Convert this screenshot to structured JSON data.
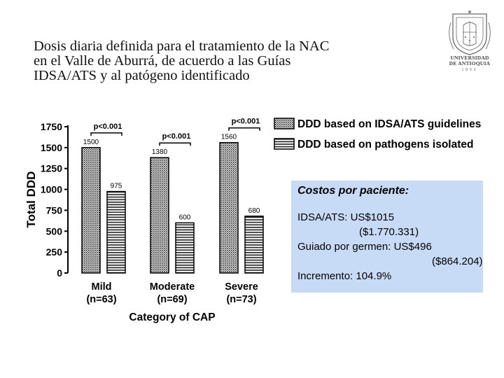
{
  "slide": {
    "title_lines": [
      "Dosis diaria definida para el tratamiento de la NAC",
      "en el Valle de Aburrá, de acuerdo a las Guías",
      "IDSA/ATS y al patógeno identificado"
    ]
  },
  "logo": {
    "name_line1": "UNIVERSIDAD",
    "name_line2": "DE ANTIOQUIA",
    "year": "1803",
    "seal_icon": "university-seal-icon"
  },
  "cost_box": {
    "title": "Costos por paciente:",
    "lines": [
      "IDSA/ATS: US$1015",
      "($1.770.331)",
      "Guiado por germen: US$496",
      "($864.204)",
      "Incremento: 104.9%"
    ],
    "background_color": "#c7daf6"
  },
  "chart_data": {
    "type": "bar",
    "ylabel": "Total DDD",
    "xlabel": "Category of CAP",
    "ylim": [
      0,
      1750
    ],
    "yticks": [
      "0",
      "250",
      "500",
      "750",
      "1000",
      "1250",
      "1500",
      "1750"
    ],
    "categories": [
      "Mild",
      "Moderate",
      "Severe"
    ],
    "category_counts": [
      "(n=63)",
      "(n=69)",
      "(n=73)"
    ],
    "series": [
      {
        "name": "DDD based on IDSA/ATS guidelines",
        "pattern": "dotted",
        "values": [
          1500,
          1380,
          1560
        ]
      },
      {
        "name": "DDD based on pathogens isolated",
        "pattern": "striped",
        "values": [
          975,
          600,
          680
        ]
      }
    ],
    "data_labels": [
      [
        "1500",
        "975"
      ],
      [
        "1380",
        "600"
      ],
      [
        "1560",
        "680"
      ]
    ],
    "significance": [
      "p<0.001",
      "p<0.001",
      "p<0.001"
    ],
    "legend_position": "top-right"
  }
}
